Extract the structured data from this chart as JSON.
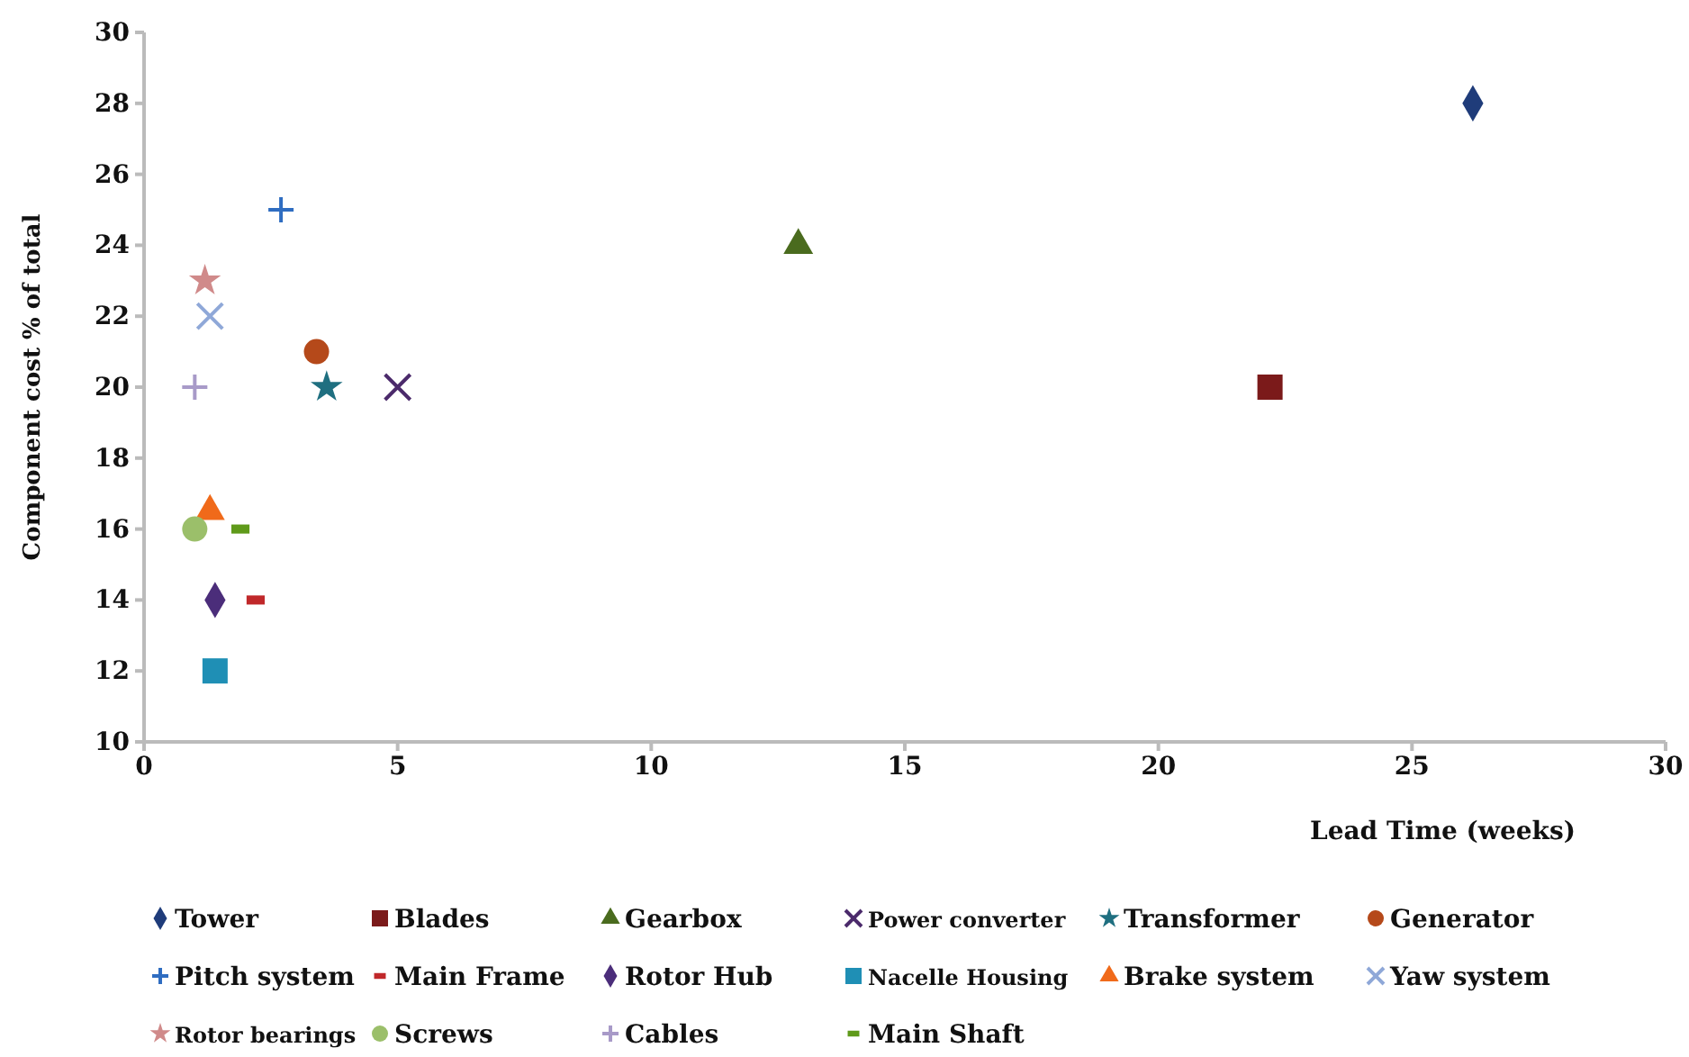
{
  "chart_data": {
    "type": "scatter",
    "xlabel": "Lead Time (weeks)",
    "ylabel": "Component cost % of total",
    "xlim": [
      0,
      30
    ],
    "ylim": [
      10,
      30
    ],
    "xticks": [
      0,
      5,
      10,
      15,
      20,
      25,
      30
    ],
    "yticks": [
      10,
      12,
      14,
      16,
      18,
      20,
      22,
      24,
      26,
      28,
      30
    ],
    "grid": false,
    "legend": "bottom",
    "series": [
      {
        "name": "Tower",
        "color": "#1f3c7a",
        "marker": "diamond",
        "x": [
          26.2
        ],
        "values": [
          28
        ]
      },
      {
        "name": "Blades",
        "color": "#7b1a1a",
        "marker": "square",
        "x": [
          22.2
        ],
        "values": [
          20
        ]
      },
      {
        "name": "Gearbox",
        "color": "#4a6b1e",
        "marker": "triangle",
        "x": [
          12.9
        ],
        "values": [
          24
        ]
      },
      {
        "name": "Power converter",
        "color": "#4b2a6b",
        "marker": "cross",
        "x": [
          5.0
        ],
        "values": [
          20
        ]
      },
      {
        "name": "Transformer",
        "color": "#1f6f80",
        "marker": "star",
        "x": [
          3.6
        ],
        "values": [
          20
        ]
      },
      {
        "name": "Generator",
        "color": "#b5491a",
        "marker": "circle",
        "x": [
          3.4
        ],
        "values": [
          21
        ]
      },
      {
        "name": "Pitch system",
        "color": "#2f6dc1",
        "marker": "plus",
        "x": [
          2.7
        ],
        "values": [
          25
        ]
      },
      {
        "name": "Main Frame",
        "color": "#c0282a",
        "x": [
          2.2
        ],
        "values": [
          14
        ]
      },
      {
        "name": "Rotor Hub",
        "color": "#4b2d7a",
        "marker": "diamond",
        "x": [
          1.4
        ],
        "values": [
          14
        ]
      },
      {
        "name": "Nacelle Housing",
        "color": "#1f8fb5",
        "marker": "square",
        "x": [
          1.4
        ],
        "values": [
          12
        ]
      },
      {
        "name": "Brake system",
        "color": "#f06a1a",
        "marker": "triangle",
        "x": [
          1.3
        ],
        "values": [
          16.5
        ]
      },
      {
        "name": "Yaw system",
        "color": "#8fa8d8",
        "marker": "cross",
        "x": [
          1.3
        ],
        "values": [
          22
        ]
      },
      {
        "name": "Rotor bearings",
        "color": "#d08a8a",
        "marker": "star",
        "x": [
          1.2
        ],
        "values": [
          23
        ]
      },
      {
        "name": "Screws",
        "color": "#9bbf6a",
        "marker": "circle",
        "x": [
          1.0
        ],
        "values": [
          16
        ]
      },
      {
        "name": "Cables",
        "color": "#a89ac8",
        "marker": "plus",
        "x": [
          1.0
        ],
        "values": [
          20
        ]
      },
      {
        "name": "Main Shaft",
        "color": "#5f9a1a",
        "x": [
          1.9
        ],
        "values": [
          16
        ]
      }
    ]
  }
}
